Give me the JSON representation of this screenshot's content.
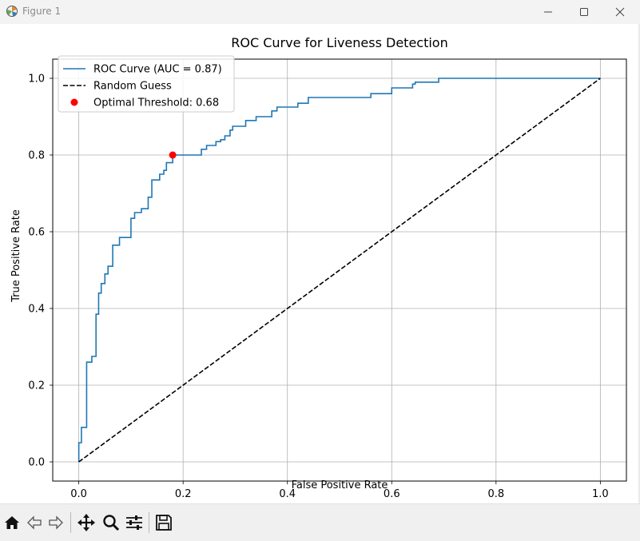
{
  "window": {
    "title": "Figure 1",
    "icon": "matplotlib-icon",
    "controls": [
      "minimize-icon",
      "maximize-icon",
      "close-icon"
    ]
  },
  "toolbar": {
    "tools": [
      {
        "name": "home-icon",
        "label": "Home"
      },
      {
        "name": "back-arrow-icon",
        "label": "Back"
      },
      {
        "name": "forward-arrow-icon",
        "label": "Forward"
      },
      {
        "name": "pan-move-icon",
        "label": "Pan"
      },
      {
        "name": "zoom-magnifier-icon",
        "label": "Zoom"
      },
      {
        "name": "configure-subplots-icon",
        "label": "Subplots"
      },
      {
        "name": "save-disk-icon",
        "label": "Save"
      }
    ]
  },
  "colors": {
    "roc": "#1f77b4",
    "random": "#000000",
    "optimal": "#ff0000",
    "grid": "#b0b0b0"
  },
  "chart_data": {
    "type": "line",
    "title": "ROC Curve for Liveness Detection",
    "xlabel": "False Positive Rate",
    "ylabel": "True Positive Rate",
    "xlim": [
      -0.05,
      1.05
    ],
    "ylim": [
      -0.05,
      1.05
    ],
    "xticks": [
      "0.0",
      "0.2",
      "0.4",
      "0.6",
      "0.8",
      "1.0"
    ],
    "yticks": [
      "0.0",
      "0.2",
      "0.4",
      "0.6",
      "0.8",
      "1.0"
    ],
    "grid": true,
    "legend_position": "upper-left",
    "series": [
      {
        "name": "ROC Curve (AUC = 0.87)",
        "style": "solid",
        "x": [
          0,
          0,
          0.005,
          0.005,
          0.015,
          0.015,
          0.025,
          0.025,
          0.033,
          0.033,
          0.038,
          0.038,
          0.043,
          0.043,
          0.05,
          0.05,
          0.056,
          0.056,
          0.065,
          0.065,
          0.078,
          0.078,
          0.1,
          0.1,
          0.107,
          0.107,
          0.12,
          0.12,
          0.133,
          0.133,
          0.14,
          0.14,
          0.155,
          0.155,
          0.163,
          0.163,
          0.168,
          0.168,
          0.18,
          0.18,
          0.235,
          0.235,
          0.245,
          0.245,
          0.263,
          0.263,
          0.272,
          0.272,
          0.28,
          0.28,
          0.29,
          0.29,
          0.295,
          0.295,
          0.32,
          0.32,
          0.34,
          0.34,
          0.37,
          0.37,
          0.38,
          0.38,
          0.42,
          0.42,
          0.44,
          0.44,
          0.47,
          0.47,
          0.56,
          0.56,
          0.6,
          0.6,
          0.64,
          0.64,
          0.645,
          0.645,
          0.69,
          0.69,
          1.0
        ],
        "y": [
          0,
          0.05,
          0.05,
          0.09,
          0.09,
          0.26,
          0.26,
          0.275,
          0.275,
          0.385,
          0.385,
          0.44,
          0.44,
          0.465,
          0.465,
          0.49,
          0.49,
          0.51,
          0.51,
          0.565,
          0.565,
          0.585,
          0.585,
          0.635,
          0.635,
          0.65,
          0.65,
          0.66,
          0.66,
          0.69,
          0.69,
          0.735,
          0.735,
          0.75,
          0.75,
          0.76,
          0.76,
          0.78,
          0.78,
          0.8,
          0.8,
          0.815,
          0.815,
          0.825,
          0.825,
          0.835,
          0.835,
          0.84,
          0.84,
          0.85,
          0.85,
          0.865,
          0.865,
          0.875,
          0.875,
          0.89,
          0.89,
          0.9,
          0.9,
          0.915,
          0.915,
          0.925,
          0.925,
          0.935,
          0.935,
          0.95,
          0.95,
          0.95,
          0.95,
          0.96,
          0.96,
          0.975,
          0.975,
          0.985,
          0.985,
          0.99,
          0.99,
          1.0,
          1.0
        ]
      },
      {
        "name": "Random Guess",
        "style": "dashed",
        "x": [
          0,
          1
        ],
        "y": [
          0,
          1
        ]
      },
      {
        "name": "Optimal Threshold: 0.68",
        "style": "marker",
        "x": [
          0.18
        ],
        "y": [
          0.8
        ]
      }
    ]
  }
}
